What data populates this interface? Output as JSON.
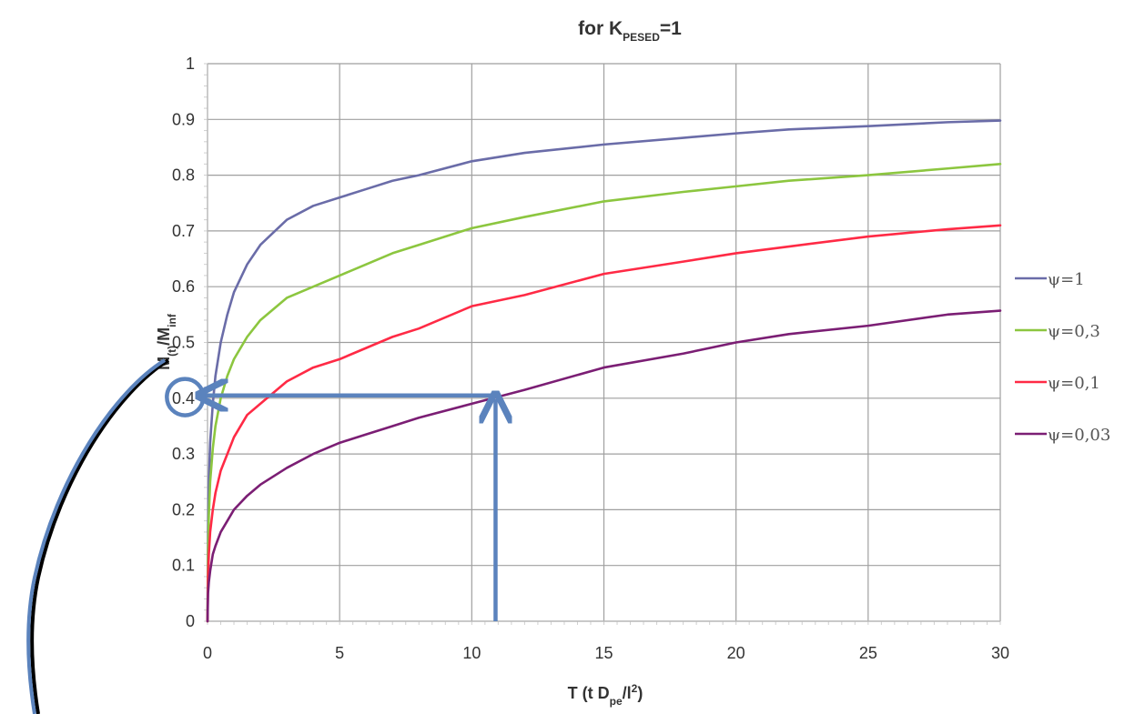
{
  "chart_data": {
    "type": "line",
    "title": {
      "prefix": "for K",
      "subscript": "PESED",
      "suffix": "=1"
    },
    "xlabel": {
      "parts": [
        {
          "text": "T (t D",
          "style": "normal"
        },
        {
          "text": "pe",
          "style": "sub"
        },
        {
          "text": "/l",
          "style": "normal"
        },
        {
          "text": "2",
          "style": "sup"
        },
        {
          "text": ")",
          "style": "normal"
        }
      ]
    },
    "ylabel": {
      "parts": [
        {
          "text": "M",
          "style": "normal"
        },
        {
          "text": "(t)",
          "style": "sub"
        },
        {
          "text": "/M",
          "style": "normal"
        },
        {
          "text": "inf",
          "style": "sub"
        }
      ]
    },
    "xlim": [
      0,
      30
    ],
    "ylim": [
      0,
      1
    ],
    "x_ticks": [
      0,
      5,
      10,
      15,
      20,
      25,
      30
    ],
    "x_tick_labels": [
      "0",
      "5",
      "10",
      "15",
      "20",
      "25",
      "30"
    ],
    "y_ticks": [
      0,
      0.1,
      0.2,
      0.3,
      0.4,
      0.5,
      0.6,
      0.7,
      0.8,
      0.9,
      1
    ],
    "y_tick_labels": [
      "0",
      "0.1",
      "0.2",
      "0.3",
      "0.4",
      "0.5",
      "0.6",
      "0.7",
      "0.8",
      "0.9",
      "1"
    ],
    "grid": true,
    "legend_position": "right",
    "x": [
      0,
      0.02,
      0.05,
      0.1,
      0.2,
      0.3,
      0.5,
      0.75,
      1,
      1.5,
      2,
      3,
      4,
      5,
      6,
      7,
      8,
      10,
      12,
      15,
      18,
      20,
      22,
      25,
      28,
      30
    ],
    "series": [
      {
        "name": "ψ=1",
        "color": "#6A6CA8",
        "values": [
          0,
          0.16,
          0.25,
          0.32,
          0.39,
          0.44,
          0.5,
          0.55,
          0.59,
          0.64,
          0.675,
          0.72,
          0.745,
          0.76,
          0.775,
          0.79,
          0.8,
          0.825,
          0.84,
          0.855,
          0.867,
          0.875,
          0.882,
          0.888,
          0.895,
          0.898
        ]
      },
      {
        "name": "ψ=0,3",
        "color": "#8CC63F",
        "values": [
          0,
          0.12,
          0.19,
          0.25,
          0.31,
          0.35,
          0.4,
          0.44,
          0.47,
          0.51,
          0.54,
          0.58,
          0.6,
          0.62,
          0.64,
          0.66,
          0.675,
          0.705,
          0.725,
          0.753,
          0.77,
          0.78,
          0.79,
          0.8,
          0.812,
          0.82
        ]
      },
      {
        "name": "ψ=0,1",
        "color": "#FF2A45",
        "values": [
          0,
          0.08,
          0.12,
          0.16,
          0.2,
          0.23,
          0.27,
          0.3,
          0.33,
          0.37,
          0.39,
          0.43,
          0.455,
          0.47,
          0.49,
          0.51,
          0.525,
          0.565,
          0.585,
          0.623,
          0.645,
          0.66,
          0.672,
          0.69,
          0.703,
          0.71
        ]
      },
      {
        "name": "ψ=0,03",
        "color": "#7B1E74",
        "values": [
          0,
          0.05,
          0.07,
          0.09,
          0.12,
          0.135,
          0.16,
          0.18,
          0.2,
          0.225,
          0.245,
          0.275,
          0.3,
          0.32,
          0.335,
          0.35,
          0.365,
          0.39,
          0.415,
          0.455,
          0.48,
          0.5,
          0.515,
          0.53,
          0.55,
          0.557
        ]
      }
    ],
    "annotations": [
      {
        "type": "arrow",
        "from": [
          10.9,
          0
        ],
        "to": [
          10.9,
          0.405
        ],
        "color": "#5B83BD"
      },
      {
        "type": "arrow",
        "from": [
          10.9,
          0.405
        ],
        "to": [
          -0.15,
          0.405
        ],
        "color": "#5B83BD"
      },
      {
        "type": "circle_highlight",
        "center": [
          -0.85,
          0.402
        ],
        "color": "#5B83BD"
      },
      {
        "type": "curve_callout",
        "color": "#5B83BD"
      }
    ]
  }
}
